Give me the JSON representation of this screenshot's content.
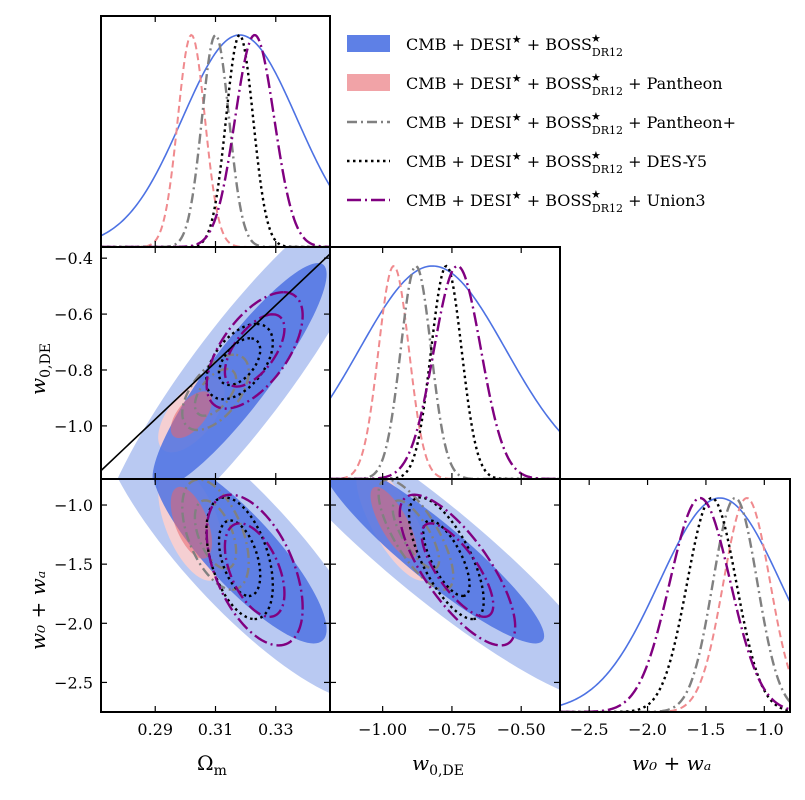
{
  "chart_data": {
    "type": "corner",
    "parameters": [
      {
        "name": "omega_m",
        "label": "Ω",
        "label_sub": "m",
        "range": [
          0.272,
          0.348
        ],
        "ticks": [
          0.29,
          0.31,
          0.33
        ],
        "tick_labels": [
          "0.29",
          "0.31",
          "0.33"
        ]
      },
      {
        "name": "w0",
        "label": "w",
        "label_sub": "0,DE",
        "range": [
          -1.19,
          -0.36
        ],
        "ticks": [
          -1.0,
          -0.8,
          -0.6,
          -0.4
        ],
        "tick_labels": [
          "−1.0",
          "−0.8",
          "−0.6",
          "−0.4"
        ],
        "bottom_ticks": [
          -1.0,
          -0.75,
          -0.5
        ],
        "bottom_tick_labels": [
          "−1.00",
          "−0.75",
          "−0.50"
        ]
      },
      {
        "name": "w0wa",
        "label": "w₀ + wₐ",
        "range": [
          -2.75,
          -0.78
        ],
        "ticks": [
          -1.0,
          -1.5,
          -2.0,
          -2.5
        ],
        "tick_labels": [
          "−1.0",
          "−1.5",
          "−2.0",
          "−2.5"
        ],
        "bottom_ticks": [
          -2.5,
          -2.0,
          -1.5,
          -1.0
        ],
        "bottom_tick_labels": [
          "−2.5",
          "−2.0",
          "−1.5",
          "−1.0"
        ]
      }
    ],
    "series": [
      {
        "id": "base",
        "style": "filled",
        "color": "#4d72e3",
        "light_color": "#b9c9f2",
        "legend": {
          "main": "CMB + DESI",
          "boss": " + BOSS",
          "sub": "DR12",
          "suffix": ""
        },
        "mean": [
          0.318,
          -0.82,
          -1.38
        ],
        "sigma": [
          0.019,
          0.265,
          0.52
        ],
        "corr01": 0.9,
        "corr02": -0.85,
        "corr12": -0.92
      },
      {
        "id": "pantheon",
        "style": "filled",
        "color": "#e8656b",
        "light_color": "#f5cfd2",
        "legend": {
          "main": "CMB + DESI",
          "boss": " + BOSS",
          "sub": "DR12",
          "suffix": " + Pantheon"
        },
        "mean": [
          0.302,
          -0.96,
          -1.15
        ],
        "sigma": [
          0.0045,
          0.055,
          0.2
        ],
        "corr01": 0.6,
        "corr02": -0.55,
        "corr12": -0.75
      },
      {
        "id": "pantheonplus",
        "style": "dashdot",
        "color": "#808080",
        "legend": {
          "main": "CMB + DESI",
          "boss": " + BOSS",
          "sub": "DR12",
          "suffix": " + Pantheon+"
        },
        "mean": [
          0.31,
          -0.88,
          -1.25
        ],
        "sigma": [
          0.0045,
          0.055,
          0.19
        ],
        "corr01": 0.55,
        "corr02": -0.5,
        "corr12": -0.75
      },
      {
        "id": "desy5",
        "style": "dotted",
        "color": "#000000",
        "legend": {
          "main": "CMB + DESI",
          "boss": " + BOSS",
          "sub": "DR12",
          "suffix": " + DES-Y5"
        },
        "mean": [
          0.318,
          -0.77,
          -1.45
        ],
        "sigma": [
          0.0045,
          0.055,
          0.21
        ],
        "corr01": 0.5,
        "corr02": -0.45,
        "corr12": -0.7
      },
      {
        "id": "union3",
        "style": "longdashdot",
        "color": "#800080",
        "legend": {
          "main": "CMB + DESI",
          "boss": " + BOSS",
          "sub": "DR12",
          "suffix": " + Union3"
        },
        "mean": [
          0.323,
          -0.73,
          -1.55
        ],
        "sigma": [
          0.0065,
          0.085,
          0.26
        ],
        "corr01": 0.6,
        "corr02": -0.5,
        "corr12": -0.75
      }
    ],
    "reference_line": {
      "from": [
        0.272,
        -1.16
      ],
      "to": [
        0.348,
        -0.385
      ],
      "color": "#000000"
    }
  }
}
